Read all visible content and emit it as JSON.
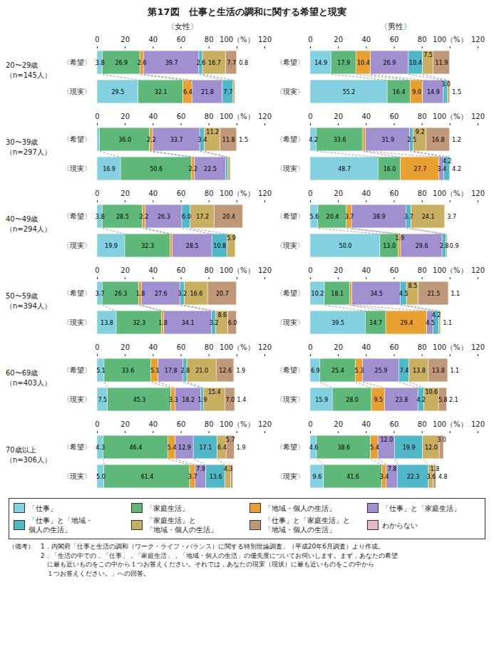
{
  "chart_data": {
    "type": "bar",
    "orientation": "horizontal",
    "stacked": true,
    "data_labels": true,
    "legend": "bottom",
    "title": "第17図　仕事と生活の調和に関する希望と現実",
    "groups": [
      "20〜29歳\n（n=145人）",
      "30〜39歳\n（n=297人）",
      "40〜49歳\n（n=294人）",
      "50〜59歳\n（n=394人）",
      "60〜69歳\n（n=403人）",
      "70歳以上\n（n=306人）"
    ],
    "categories": [
      "〈希望〉",
      "〈現実〉"
    ],
    "series": [
      {
        "name": "「仕事」",
        "color": "#82d0e0"
      },
      {
        "name": "「家庭生活」",
        "color": "#5db87a"
      },
      {
        "name": "「地域・個人の生活」",
        "color": "#e8a030"
      },
      {
        "name": "「仕事」と「家庭生活」",
        "color": "#a090d0"
      },
      {
        "name": "「仕事」と「地域・\n個人の生活」",
        "color": "#50b8c8"
      },
      {
        "name": "「家庭生活」と\n「地域・個人の生活」",
        "color": "#c8b060"
      },
      {
        "name": "「仕事」と「家庭生活」と\n「地域・個人の生活」",
        "color": "#c09878"
      },
      {
        "name": "わからない",
        "color": "#e8b8c0"
      }
    ],
    "xlim": [
      0,
      120
    ],
    "xticks": [
      0,
      20,
      40,
      60,
      80,
      {
        "value": 100,
        "label": "100（%）"
      },
      120
    ],
    "panels": [
      {
        "title": "〈女性〉",
        "bars": [
          [
            {
              "values": [
                3.8,
                26.9,
                2.6,
                39.7,
                2.6,
                16.7,
                7.7
              ],
              "value_labels": [
                "3.8",
                "26.9",
                "2.6",
                "39.7",
                "2.6",
                "16.7",
                "7.7"
              ],
              "outside_value": 0.8
            },
            {
              "values": [
                29.5,
                32.1,
                6.4,
                21.8,
                7.7,
                1.3,
                0
              ],
              "value_labels": [
                "29.5",
                "32.1",
                "6.4",
                "21.8",
                "7.7",
                null,
                null
              ],
              "outside_value": null
            }
          ],
          [
            {
              "values": [
                1.7,
                36.0,
                2.2,
                33.7,
                3.4,
                11.2,
                11.8
              ],
              "value_labels": [
                null,
                "36.0",
                "2.2",
                "33.7",
                "3.4",
                "11.2",
                "11.8"
              ],
              "outside_value": 1.5
            },
            {
              "values": [
                16.9,
                50.6,
                2.2,
                22.5,
                1.7,
                1.6,
                0
              ],
              "value_labels": [
                "16.9",
                "50.6",
                "2.2",
                "22.5",
                null,
                null,
                null
              ],
              "outside_value": null
            }
          ],
          [
            {
              "values": [
                3.8,
                28.5,
                2.2,
                26.3,
                6.0,
                17.2,
                20.4
              ],
              "value_labels": [
                "3.8",
                "28.5",
                "2.2",
                "26.3",
                "6.0",
                "17.2",
                "20.4"
              ],
              "outside_value": null
            },
            {
              "values": [
                19.9,
                32.3,
                1.6,
                28.5,
                10.8,
                5.9,
                0
              ],
              "value_labels": [
                "19.9",
                "32.3",
                null,
                "28.5",
                "10.8",
                "5.9",
                null
              ],
              "outside_value": null
            }
          ],
          [
            {
              "values": [
                3.7,
                26.3,
                1.8,
                27.6,
                3.2,
                16.6,
                20.7
              ],
              "value_labels": [
                "3.7",
                "26.3",
                "1.8",
                "27.6",
                "3.2",
                "16.6",
                "20.7"
              ],
              "outside_value": null
            },
            {
              "values": [
                13.8,
                32.3,
                1.8,
                34.1,
                3.2,
                8.6,
                6.0
              ],
              "value_labels": [
                "13.8",
                "32.3",
                "1.8",
                "34.1",
                "3.2",
                "8.6",
                "6.0"
              ],
              "outside_value": null
            }
          ],
          [
            {
              "values": [
                5.1,
                33.6,
                5.1,
                17.8,
                2.8,
                21.0,
                12.6
              ],
              "value_labels": [
                "5.1",
                "33.6",
                "5.1",
                "17.8",
                "2.8",
                "21.0",
                "12.6"
              ],
              "outside_value": 1.9
            },
            {
              "values": [
                7.5,
                45.3,
                3.3,
                18.2,
                1.9,
                15.4,
                7.0
              ],
              "value_labels": [
                "7.5",
                "45.3",
                "3.3",
                "18.2",
                "1.9",
                "15.4",
                "7.0"
              ],
              "outside_value": 1.4
            }
          ],
          [
            {
              "values": [
                4.3,
                46.4,
                5.4,
                12.9,
                17.1,
                6.4,
                5.7
              ],
              "value_labels": [
                "4.3",
                "46.4",
                "5.4",
                "12.9",
                "17.1",
                "6.4",
                "5.7"
              ],
              "outside_value": 1.9
            },
            {
              "values": [
                5.0,
                61.4,
                3.7,
                7.9,
                13.6,
                4.3,
                1.4
              ],
              "value_labels": [
                "5.0",
                "61.4",
                "3.7",
                "7.9",
                "13.6",
                "4.3",
                null
              ],
              "outside_value": null
            }
          ]
        ]
      },
      {
        "title": "〈男性〉",
        "bars": [
          [
            {
              "values": [
                14.9,
                17.9,
                10.4,
                26.9,
                10.4,
                7.5,
                11.9
              ],
              "value_labels": [
                "14.9",
                "17.9",
                "10.4",
                "26.9",
                "10.4",
                "7.5",
                "11.9"
              ],
              "outside_value": null
            },
            {
              "values": [
                55.2,
                16.4,
                9.0,
                14.9,
                3.0,
                1.5,
                0
              ],
              "value_labels": [
                "55.2",
                "16.4",
                "9.0",
                "14.9",
                "3.0",
                null,
                null
              ],
              "outside_value": 1.5
            }
          ],
          [
            {
              "values": [
                4.2,
                33.6,
                1.7,
                31.9,
                2.5,
                9.2,
                16.8
              ],
              "value_labels": [
                "4.2",
                "33.6",
                null,
                "31.9",
                "2.5",
                "9.2",
                "16.8"
              ],
              "outside_value": 1.2
            },
            {
              "values": [
                48.7,
                16.0,
                27.7,
                3.4,
                4.2,
                0,
                0
              ],
              "value_labels": [
                "48.7",
                "16.0",
                "27.7",
                "3.4",
                "4.2",
                null,
                null
              ],
              "outside_value": 4.2
            }
          ],
          [
            {
              "values": [
                5.6,
                20.4,
                3.7,
                38.9,
                3.7,
                24.1,
                0
              ],
              "value_labels": [
                "5.6",
                "20.4",
                "3.7",
                "38.9",
                "3.7",
                "24.1",
                null
              ],
              "outside_value": 3.7
            },
            {
              "values": [
                50.0,
                13.0,
                1.9,
                29.6,
                2.8,
                0.9,
                0
              ],
              "value_labels": [
                "50.0",
                "13.0",
                "1.9",
                "29.6",
                "2.8",
                null,
                null
              ],
              "outside_value": 0.9
            }
          ],
          [
            {
              "values": [
                10.2,
                18.1,
                1.7,
                34.5,
                4.5,
                8.5,
                21.5
              ],
              "value_labels": [
                "10.2",
                "18.1",
                null,
                "34.5",
                "4.5",
                "8.5",
                "21.5"
              ],
              "outside_value": 1.1
            },
            {
              "values": [
                39.5,
                14.7,
                29.4,
                4.5,
                4.2,
                1.1,
                0
              ],
              "value_labels": [
                "39.5",
                "14.7",
                "29.4",
                "4.5",
                "4.2",
                null,
                null
              ],
              "outside_value": 1.1
            }
          ],
          [
            {
              "values": [
                6.9,
                25.4,
                5.3,
                25.9,
                7.4,
                13.8,
                13.8
              ],
              "value_labels": [
                "6.9",
                "25.4",
                "5.3",
                "25.9",
                "7.4",
                "13.8",
                "13.8"
              ],
              "outside_value": 1.1
            },
            {
              "values": [
                15.9,
                28.0,
                9.5,
                23.8,
                4.2,
                10.6,
                5.8
              ],
              "value_labels": [
                "15.9",
                "28.0",
                "9.5",
                "23.8",
                "4.2",
                "10.6",
                "5.8"
              ],
              "outside_value": 2.1
            }
          ],
          [
            {
              "values": [
                4.6,
                38.6,
                5.4,
                12.0,
                19.9,
                12.0,
                3.0
              ],
              "value_labels": [
                "4.6",
                "38.6",
                "5.4",
                "12.0",
                "19.9",
                "12.0",
                "3.0"
              ],
              "outside_value": null
            },
            {
              "values": [
                9.6,
                41.6,
                3.4,
                7.8,
                22.3,
                3.6,
                1.8
              ],
              "value_labels": [
                "9.6",
                "41.6",
                "3.4",
                "7.8",
                "22.3",
                "3.6",
                "1.8"
              ],
              "outside_value": 4.8
            }
          ]
        ]
      }
    ],
    "footnote": "（備考）　1．内閣府「仕事と生活の調和（ワーク・ライフ・バランス）に関する特別世論調査」（平成20年6月調査）より作成。\n　　　　　2．「生活の中での，「仕事」，「家庭生活」，「地域・個人の生活」の優先度についてお伺いします。まず，あなたの希望\n　　　　　　に最も近いものをこの中から１つお答えください。それでは，あなたの現実（現状）に最も近いものをこの中から\n　　　　　　１つお答えください。」への回答。"
  }
}
